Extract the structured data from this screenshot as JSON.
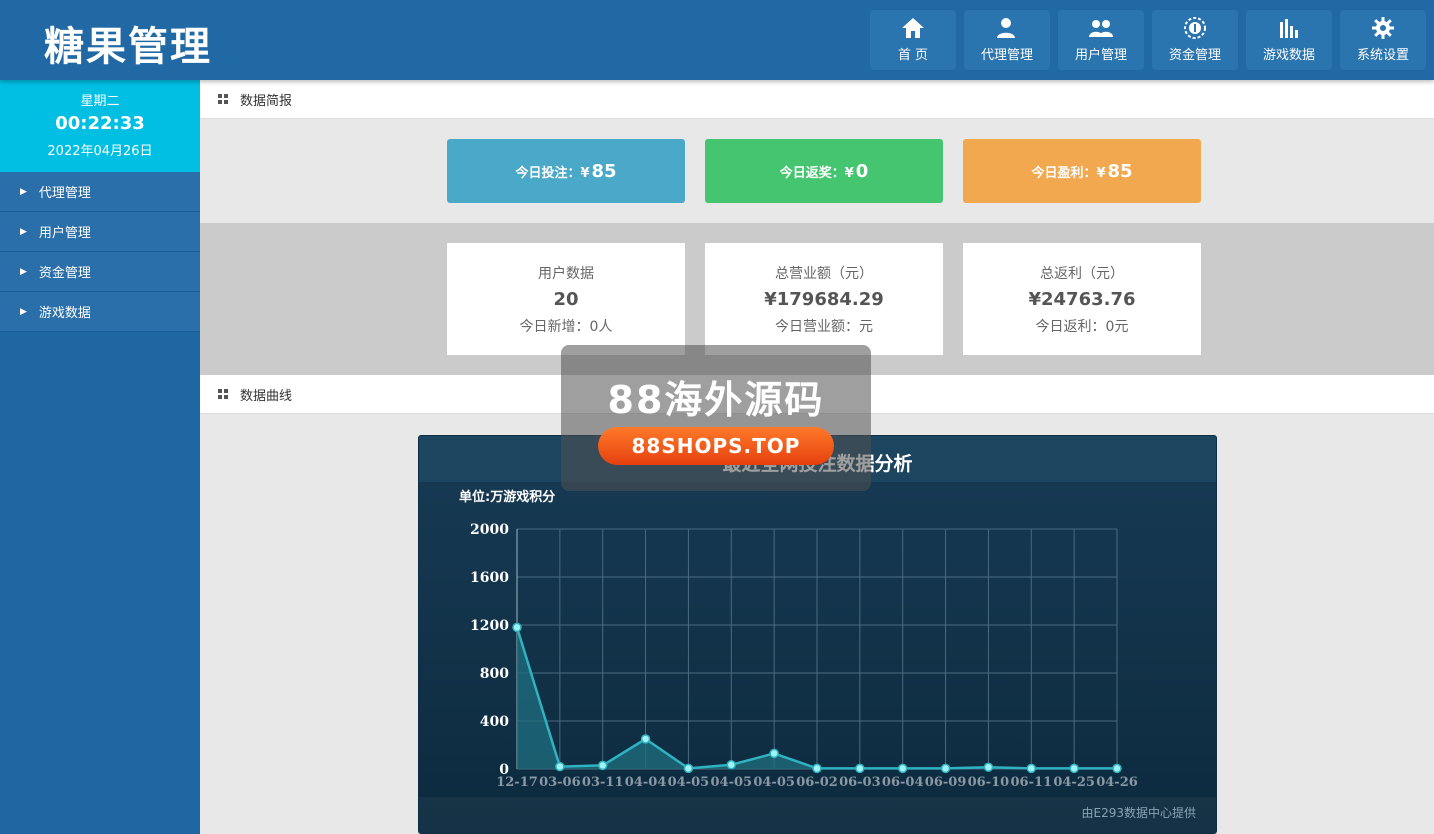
{
  "app": {
    "title": "糖果管理"
  },
  "nav": [
    {
      "label": "首 页",
      "icon": "home-icon"
    },
    {
      "label": "代理管理",
      "icon": "agent-user-icon"
    },
    {
      "label": "用户管理",
      "icon": "users-icon"
    },
    {
      "label": "资金管理",
      "icon": "coin-icon"
    },
    {
      "label": "游戏数据",
      "icon": "bar-chart-icon"
    },
    {
      "label": "系统设置",
      "icon": "gear-icon"
    }
  ],
  "clock": {
    "weekday": "星期二",
    "time": "00:22:33",
    "date": "2022年04月26日"
  },
  "sidebar": {
    "items": [
      {
        "label": "代理管理"
      },
      {
        "label": "用户管理"
      },
      {
        "label": "资金管理"
      },
      {
        "label": "游戏数据"
      }
    ]
  },
  "sections": {
    "summary": "数据简报",
    "curve": "数据曲线"
  },
  "stats": [
    {
      "label": "今日投注：¥",
      "value": "85",
      "color": "#4aa8c8"
    },
    {
      "label": "今日返奖：¥",
      "value": "0",
      "color": "#46c570"
    },
    {
      "label": "今日盈利：¥",
      "value": "85",
      "color": "#f2a84f"
    }
  ],
  "cards": [
    {
      "title": "用户数据",
      "value": "20",
      "sub": "今日新增：0人"
    },
    {
      "title": "总营业额（元）",
      "value": "¥179684.29",
      "sub": "今日营业额：元"
    },
    {
      "title": "总返利（元）",
      "value": "¥24763.76",
      "sub": "今日返利：0元"
    }
  ],
  "chart": {
    "title": "最近全网投注数据分析",
    "unit": "单位:万游戏积分",
    "provider": "由E293数据中心提供"
  },
  "chart_data": {
    "type": "area",
    "title": "最近全网投注数据分析",
    "ylabel": "单位:万游戏积分",
    "categories": [
      "12-17",
      "03-06",
      "03-11",
      "04-04",
      "04-05",
      "04-05",
      "04-05",
      "06-02",
      "06-03",
      "06-04",
      "06-09",
      "06-10",
      "06-11",
      "04-25",
      "04-26"
    ],
    "values": [
      1180,
      20,
      30,
      250,
      5,
      35,
      130,
      5,
      5,
      5,
      5,
      15,
      5,
      5,
      5
    ],
    "yticks": [
      0,
      400,
      800,
      1200,
      1600,
      2000
    ],
    "ylim": [
      0,
      2000
    ],
    "grid": true,
    "colors": {
      "line": "#2fb3c0",
      "area": "#1f6f80",
      "marker": "#9ff2f5"
    }
  },
  "watermark": {
    "text": "88海外源码",
    "url": "88SHOPS.TOP"
  }
}
